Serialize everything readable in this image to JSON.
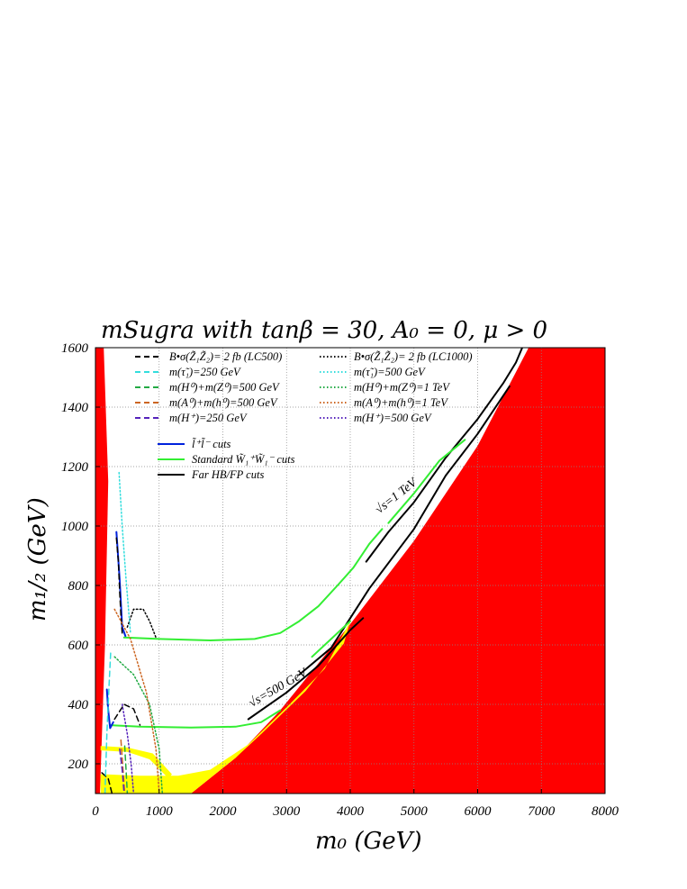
{
  "chart_data": {
    "type": "line",
    "title": "mSugra with tanβ = 30, A₀ = 0, μ > 0",
    "xlabel": "m₀ (GeV)",
    "ylabel": "m₁/₂ (GeV)",
    "xlim": [
      0,
      8000
    ],
    "ylim": [
      100,
      1600
    ],
    "x_ticks": [
      "0",
      "1000",
      "2000",
      "3000",
      "4000",
      "5000",
      "6000",
      "7000",
      "8000"
    ],
    "y_ticks": [
      "200",
      "400",
      "600",
      "800",
      "1000",
      "1200",
      "1400",
      "1600"
    ],
    "grid": true,
    "legend_position": "top-left",
    "colors": {
      "excluded": "#ff0000",
      "lep_excluded": "#ffff00",
      "black": "#000000",
      "cyan": "#33dddd",
      "green_dash": "#22aa44",
      "orange": "#cc6622",
      "purple": "#5522bb",
      "blue": "#0022dd",
      "green": "#33ee33"
    },
    "legend": [
      {
        "label": "B•σ(Z̃₁Z̃₂)= 2 fb (LC500)",
        "color": "#000000",
        "style": "dashed"
      },
      {
        "label": "B•σ(Z̃₁Z̃₂)= 2 fb (LC1000)",
        "color": "#000000",
        "style": "dotted"
      },
      {
        "label": "m(τ̃₁)=250 GeV",
        "color": "#33dddd",
        "style": "dashed"
      },
      {
        "label": "m(τ̃₁)=500 GeV",
        "color": "#33dddd",
        "style": "dotted"
      },
      {
        "label": "m(H⁰)+m(Z⁰)=500 GeV",
        "color": "#22aa44",
        "style": "dashed"
      },
      {
        "label": "m(H⁰)+m(Z⁰)=1 TeV",
        "color": "#22aa44",
        "style": "dotted"
      },
      {
        "label": "m(A⁰)+m(h⁰)=500 GeV",
        "color": "#cc6622",
        "style": "dashed"
      },
      {
        "label": "m(A⁰)+m(h⁰)=1 TeV",
        "color": "#cc6622",
        "style": "dotted"
      },
      {
        "label": "m(H⁺)=250 GeV",
        "color": "#5522bb",
        "style": "dashed"
      },
      {
        "label": "m(H⁺)=500 GeV",
        "color": "#5522bb",
        "style": "dotted"
      },
      {
        "label": "l̃⁺l̃⁻ cuts",
        "color": "#0022dd",
        "style": "solid"
      },
      {
        "label": "Standard W̃₁⁺W̃₁⁻ cuts",
        "color": "#33ee33",
        "style": "solid"
      },
      {
        "label": "Far HB/FP cuts",
        "color": "#000000",
        "style": "solid"
      }
    ],
    "annotations": [
      {
        "text": "√s=1 TeV",
        "x": 4450,
        "y": 1040
      },
      {
        "text": "√s=500 GeV",
        "x": 2450,
        "y": 390
      }
    ],
    "regions": [
      {
        "name": "excluded-left",
        "color": "#ff0000",
        "points": [
          [
            0,
            100
          ],
          [
            0,
            1600
          ],
          [
            130,
            1600
          ],
          [
            200,
            1150
          ],
          [
            150,
            600
          ],
          [
            70,
            100
          ]
        ]
      },
      {
        "name": "excluded-right",
        "color": "#ff0000",
        "points": [
          [
            1500,
            100
          ],
          [
            2200,
            220
          ],
          [
            2900,
            380
          ],
          [
            4000,
            670
          ],
          [
            5000,
            950
          ],
          [
            6000,
            1270
          ],
          [
            6800,
            1600
          ],
          [
            8000,
            1600
          ],
          [
            8000,
            100
          ]
        ]
      },
      {
        "name": "lep-excluded",
        "color": "#ffff00",
        "points": [
          [
            80,
            100
          ],
          [
            80,
            165
          ],
          [
            700,
            160
          ],
          [
            1300,
            160
          ],
          [
            1800,
            180
          ],
          [
            2400,
            265
          ],
          [
            3000,
            390
          ],
          [
            3600,
            520
          ],
          [
            4000,
            680
          ],
          [
            3900,
            605
          ],
          [
            3300,
            445
          ],
          [
            2600,
            300
          ],
          [
            2200,
            220
          ],
          [
            1500,
            100
          ]
        ]
      },
      {
        "name": "lep-band-upper",
        "color": "#ffff00",
        "points": [
          [
            80,
            260
          ],
          [
            500,
            255
          ],
          [
            900,
            235
          ],
          [
            1200,
            165
          ],
          [
            1150,
            150
          ],
          [
            850,
            215
          ],
          [
            500,
            240
          ],
          [
            80,
            245
          ]
        ]
      }
    ],
    "series": [
      {
        "name": "far-hb-fp-1tev-main",
        "color": "#000000",
        "style": "solid",
        "width": 2,
        "points": [
          [
            4250,
            880
          ],
          [
            4600,
            980
          ],
          [
            5000,
            1080
          ],
          [
            5500,
            1230
          ],
          [
            6000,
            1360
          ],
          [
            6400,
            1480
          ],
          [
            6600,
            1550
          ],
          [
            6700,
            1600
          ]
        ]
      },
      {
        "name": "far-hb-fp-1tev-lower",
        "color": "#000000",
        "style": "solid",
        "width": 2,
        "points": [
          [
            3200,
            500
          ],
          [
            3700,
            590
          ],
          [
            4300,
            790
          ],
          [
            5000,
            990
          ],
          [
            5500,
            1170
          ],
          [
            6000,
            1310
          ],
          [
            6500,
            1470
          ]
        ]
      },
      {
        "name": "far-hb-fp-500",
        "color": "#000000",
        "style": "solid",
        "width": 2,
        "points": [
          [
            2400,
            350
          ],
          [
            3000,
            440
          ],
          [
            3500,
            530
          ],
          [
            4000,
            650
          ],
          [
            4200,
            690
          ]
        ]
      },
      {
        "name": "std-wino-1tev",
        "color": "#33ee33",
        "style": "solid",
        "width": 2,
        "points": [
          [
            450,
            625
          ],
          [
            1000,
            620
          ],
          [
            1800,
            615
          ],
          [
            2500,
            620
          ],
          [
            2900,
            640
          ],
          [
            3200,
            680
          ],
          [
            3500,
            730
          ],
          [
            3800,
            800
          ],
          [
            4050,
            860
          ],
          [
            4300,
            940
          ],
          [
            4500,
            990
          ]
        ]
      },
      {
        "name": "std-wino-1tev-ext",
        "color": "#33ee33",
        "style": "solid",
        "width": 2,
        "points": [
          [
            4600,
            1010
          ],
          [
            5000,
            1110
          ],
          [
            5400,
            1220
          ],
          [
            5800,
            1290
          ]
        ]
      },
      {
        "name": "std-wino-500",
        "color": "#33ee33",
        "style": "solid",
        "width": 2,
        "points": [
          [
            230,
            330
          ],
          [
            700,
            325
          ],
          [
            1500,
            322
          ],
          [
            2200,
            325
          ],
          [
            2600,
            340
          ],
          [
            2900,
            380
          ]
        ]
      },
      {
        "name": "std-wino-500-ext",
        "color": "#33ee33",
        "style": "solid",
        "width": 2,
        "points": [
          [
            3400,
            560
          ],
          [
            3700,
            620
          ],
          [
            4000,
            680
          ]
        ]
      },
      {
        "name": "slepton-cuts-1tev",
        "color": "#0022dd",
        "style": "solid",
        "width": 2,
        "points": [
          [
            330,
            980
          ],
          [
            380,
            820
          ],
          [
            420,
            660
          ],
          [
            470,
            630
          ]
        ]
      },
      {
        "name": "slepton-cuts-500",
        "color": "#0022dd",
        "style": "solid",
        "width": 2,
        "points": [
          [
            180,
            450
          ],
          [
            200,
            380
          ],
          [
            230,
            320
          ],
          [
            280,
            340
          ]
        ]
      },
      {
        "name": "lc500-bsigma",
        "color": "#000000",
        "style": "dashed",
        "width": 1.5,
        "points": [
          [
            330,
            960
          ],
          [
            360,
            880
          ],
          [
            380,
            780
          ],
          [
            400,
            700
          ],
          [
            420,
            640
          ]
        ]
      },
      {
        "name": "lc500-bsigma-low",
        "color": "#000000",
        "style": "dashed",
        "width": 1.5,
        "points": [
          [
            300,
            350
          ],
          [
            450,
            400
          ],
          [
            600,
            385
          ],
          [
            700,
            330
          ]
        ]
      },
      {
        "name": "lc500-bsigma-bottom",
        "color": "#000000",
        "style": "dashed",
        "width": 1.5,
        "points": [
          [
            100,
            170
          ],
          [
            200,
            150
          ],
          [
            260,
            100
          ]
        ]
      },
      {
        "name": "lc1000-bsigma",
        "color": "#000000",
        "style": "dotted",
        "width": 1.5,
        "points": [
          [
            500,
            660
          ],
          [
            600,
            720
          ],
          [
            750,
            720
          ],
          [
            850,
            680
          ],
          [
            950,
            625
          ]
        ]
      },
      {
        "name": "stau-250",
        "color": "#33dddd",
        "style": "dashed",
        "width": 1.5,
        "points": [
          [
            150,
            100
          ],
          [
            180,
            300
          ],
          [
            210,
            450
          ],
          [
            240,
            580
          ]
        ]
      },
      {
        "name": "stau-500",
        "color": "#33dddd",
        "style": "dotted",
        "width": 1.5,
        "points": [
          [
            370,
            1180
          ],
          [
            420,
            1000
          ],
          [
            480,
            820
          ],
          [
            550,
            640
          ]
        ]
      },
      {
        "name": "h0z0-500",
        "color": "#22aa44",
        "style": "dashed",
        "width": 1.5,
        "points": [
          [
            460,
            260
          ],
          [
            480,
            180
          ],
          [
            500,
            100
          ]
        ]
      },
      {
        "name": "h0z0-1tev",
        "color": "#22aa44",
        "style": "dotted",
        "width": 1.5,
        "points": [
          [
            300,
            560
          ],
          [
            600,
            500
          ],
          [
            850,
            400
          ],
          [
            1000,
            250
          ],
          [
            1050,
            100
          ]
        ]
      },
      {
        "name": "a0h0-500",
        "color": "#cc6622",
        "style": "dashed",
        "width": 1.5,
        "points": [
          [
            400,
            280
          ],
          [
            430,
            190
          ],
          [
            460,
            100
          ]
        ]
      },
      {
        "name": "a0h0-1tev",
        "color": "#cc6622",
        "style": "dotted",
        "width": 1.5,
        "points": [
          [
            300,
            720
          ],
          [
            550,
            620
          ],
          [
            800,
            440
          ],
          [
            950,
            250
          ],
          [
            1000,
            100
          ]
        ]
      },
      {
        "name": "hplus-250",
        "color": "#5522bb",
        "style": "dashed",
        "width": 1.5,
        "points": [
          [
            380,
            250
          ],
          [
            420,
            180
          ],
          [
            450,
            100
          ]
        ]
      },
      {
        "name": "hplus-500",
        "color": "#5522bb",
        "style": "dotted",
        "width": 1.5,
        "points": [
          [
            420,
            400
          ],
          [
            500,
            300
          ],
          [
            560,
            200
          ],
          [
            600,
            100
          ]
        ]
      }
    ]
  }
}
